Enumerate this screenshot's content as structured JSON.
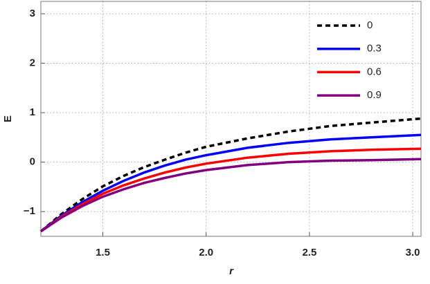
{
  "chart_data": {
    "type": "line",
    "xlabel": "r",
    "ylabel": "E",
    "x": [
      1.2,
      1.3,
      1.4,
      1.5,
      1.6,
      1.7,
      1.8,
      1.9,
      2.0,
      2.2,
      2.4,
      2.6,
      2.8,
      3.04
    ],
    "series": [
      {
        "name": "0",
        "color": "#000000",
        "dashed": true,
        "values": [
          -1.4,
          -1.05,
          -0.75,
          -0.49,
          -0.28,
          -0.1,
          0.05,
          0.19,
          0.31,
          0.48,
          0.62,
          0.73,
          0.8,
          0.88
        ]
      },
      {
        "name": "0.3",
        "color": "#0000ff",
        "dashed": false,
        "values": [
          -1.4,
          -1.08,
          -0.81,
          -0.58,
          -0.38,
          -0.21,
          -0.07,
          0.05,
          0.14,
          0.29,
          0.39,
          0.46,
          0.5,
          0.55
        ]
      },
      {
        "name": "0.6",
        "color": "#ff0000",
        "dashed": false,
        "values": [
          -1.4,
          -1.1,
          -0.85,
          -0.64,
          -0.47,
          -0.33,
          -0.21,
          -0.11,
          -0.03,
          0.09,
          0.17,
          0.22,
          0.25,
          0.27
        ]
      },
      {
        "name": "0.9",
        "color": "#800080",
        "dashed": false,
        "values": [
          -1.4,
          -1.12,
          -0.89,
          -0.7,
          -0.55,
          -0.42,
          -0.32,
          -0.23,
          -0.16,
          -0.06,
          0.0,
          0.03,
          0.04,
          0.06
        ]
      }
    ],
    "xlim": [
      1.2,
      3.04
    ],
    "ylim": [
      -1.5,
      3.25
    ],
    "xticks": [
      1.5,
      {
        "value": 2,
        "label": "2.0"
      },
      2.5,
      {
        "value": 3,
        "label": "3.0"
      }
    ],
    "yticks": [
      {
        "value": -1,
        "label": "−1"
      },
      0,
      1,
      2,
      3
    ],
    "grid": true,
    "legend": "top-right"
  }
}
